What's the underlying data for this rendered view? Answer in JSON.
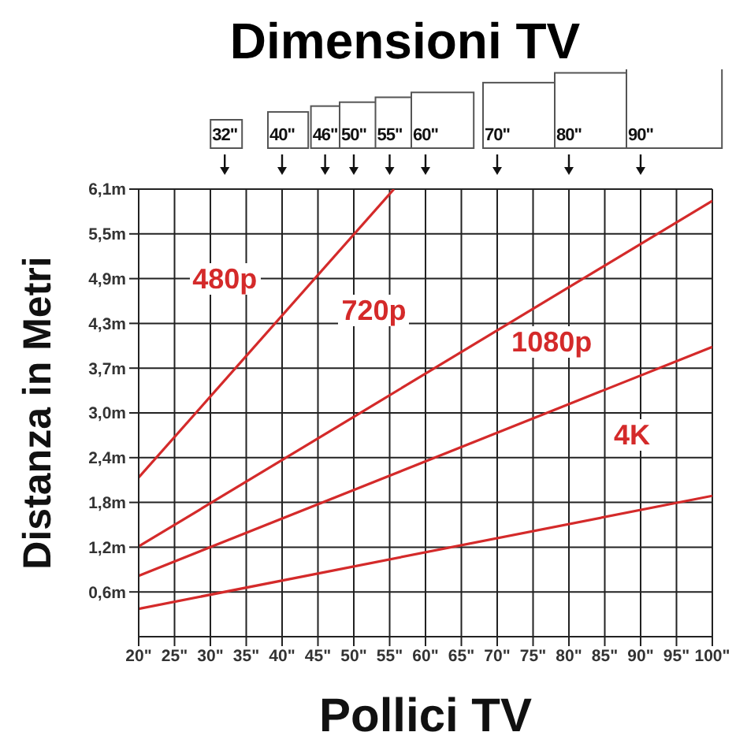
{
  "chart_data": {
    "type": "line",
    "title": "Dimensioni TV",
    "xlabel": "Pollici TV",
    "ylabel": "Distanza in Metri",
    "xlim": [
      20,
      100
    ],
    "xticks": [
      {
        "value": 20,
        "label": "20\""
      },
      {
        "value": 25,
        "label": "25\""
      },
      {
        "value": 30,
        "label": "30\""
      },
      {
        "value": 35,
        "label": "35\""
      },
      {
        "value": 40,
        "label": "40\""
      },
      {
        "value": 45,
        "label": "45\""
      },
      {
        "value": 50,
        "label": "50\""
      },
      {
        "value": 55,
        "label": "55\""
      },
      {
        "value": 60,
        "label": "60\""
      },
      {
        "value": 65,
        "label": "65\""
      },
      {
        "value": 70,
        "label": "70\""
      },
      {
        "value": 75,
        "label": "75\""
      },
      {
        "value": 80,
        "label": "80\""
      },
      {
        "value": 85,
        "label": "85\""
      },
      {
        "value": 90,
        "label": "90\""
      },
      {
        "value": 95,
        "label": "95\""
      },
      {
        "value": 100,
        "label": "100\""
      }
    ],
    "x2lim": [
      20,
      100
    ],
    "x2ticks": [
      {
        "value": 32,
        "label": "32\""
      },
      {
        "value": 40,
        "label": "40\""
      },
      {
        "value": 46,
        "label": "46\""
      },
      {
        "value": 50,
        "label": "50\""
      },
      {
        "value": 55,
        "label": "55\""
      },
      {
        "value": 60,
        "label": "60\""
      },
      {
        "value": 70,
        "label": "70\""
      },
      {
        "value": 80,
        "label": "80\""
      },
      {
        "value": 90,
        "label": "90\""
      }
    ],
    "ylim": [
      0,
      6.1
    ],
    "yticks": [
      {
        "value": 0.61,
        "label": "0,6m"
      },
      {
        "value": 1.22,
        "label": "1,2m"
      },
      {
        "value": 1.83,
        "label": "1,8m"
      },
      {
        "value": 2.44,
        "label": "2,4m"
      },
      {
        "value": 3.05,
        "label": "3,0m"
      },
      {
        "value": 3.66,
        "label": "3,7m"
      },
      {
        "value": 4.27,
        "label": "4,3m"
      },
      {
        "value": 4.88,
        "label": "4,9m"
      },
      {
        "value": 5.49,
        "label": "5,5m"
      },
      {
        "value": 6.1,
        "label": "6,1m"
      }
    ],
    "grid": true,
    "marker": "none",
    "line_style": "solid",
    "series": [
      {
        "color": "#d42a2a",
        "x": [
          20,
          55.6
        ],
        "values": [
          2.17,
          6.1
        ]
      },
      {
        "color": "#d42a2a",
        "x": [
          20,
          100
        ],
        "values": [
          1.23,
          5.94
        ]
      },
      {
        "color": "#d42a2a",
        "x": [
          20,
          100
        ],
        "values": [
          0.83,
          3.95
        ]
      },
      {
        "color": "#d42a2a",
        "x": [
          20,
          100
        ],
        "values": [
          0.38,
          1.92
        ]
      }
    ],
    "annotations": [
      "480p",
      "720p",
      "1080p",
      "4K"
    ]
  }
}
